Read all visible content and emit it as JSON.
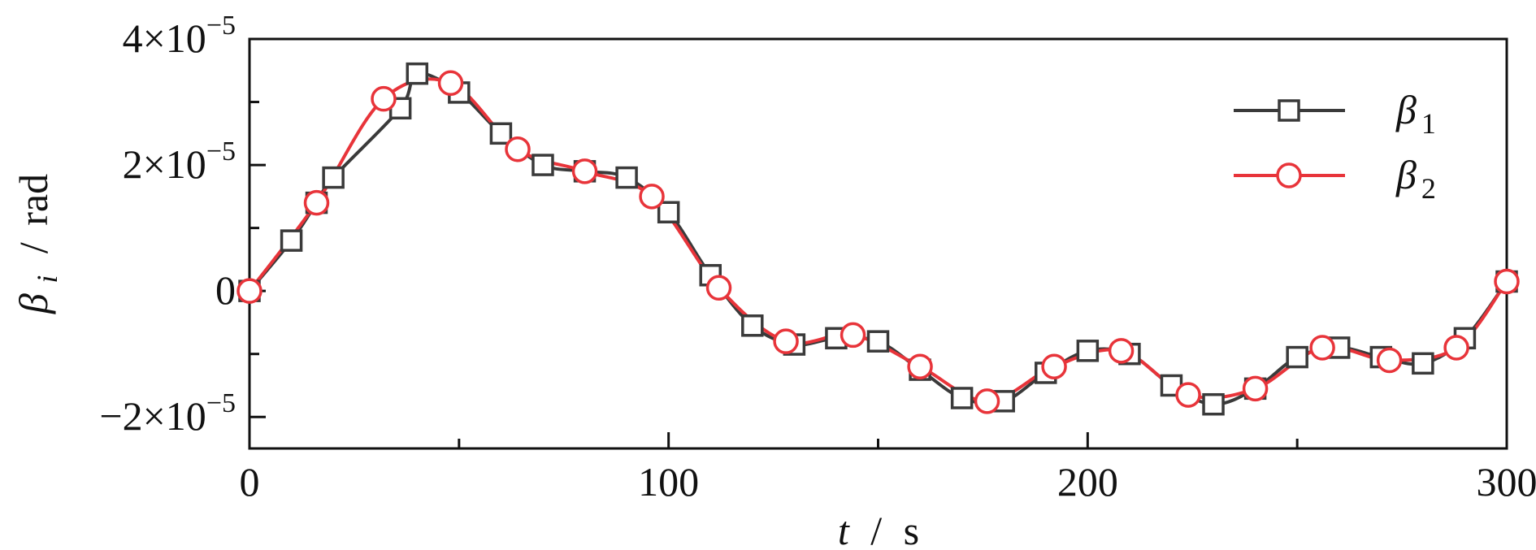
{
  "chart_data": {
    "type": "line",
    "xlabel": {
      "var": "t",
      "unit": "s"
    },
    "ylabel": {
      "var": "β",
      "sub": "i",
      "unit": "rad"
    },
    "xlim": [
      0,
      300
    ],
    "ylim": [
      -2.5,
      4
    ],
    "x_ticks": [
      {
        "value": 0,
        "label": "0"
      },
      {
        "value": 100,
        "label": "100"
      },
      {
        "value": 200,
        "label": "200"
      },
      {
        "value": 300,
        "label": "300"
      }
    ],
    "x_minor_ticks": [
      50,
      150,
      250
    ],
    "y_ticks": [
      {
        "value": 4,
        "mant": "4",
        "exp": "−5"
      },
      {
        "value": 2,
        "mant": "2",
        "exp": "−5"
      },
      {
        "value": 0,
        "mant": "0",
        "exp": ""
      },
      {
        "value": -2,
        "mant": "−2",
        "exp": "−5"
      }
    ],
    "y_minor_ticks": [
      3,
      1,
      -1
    ],
    "y_unit_scale": "×10^-5",
    "legend_position": "top-right",
    "series": [
      {
        "name": "β",
        "sub": "1",
        "marker": "square",
        "color": "#3a3a3a",
        "x": [
          0,
          10,
          16,
          20,
          36,
          40,
          50,
          60,
          70,
          80,
          90,
          100,
          110,
          120,
          130,
          140,
          150,
          160,
          170,
          180,
          190,
          200,
          210,
          220,
          230,
          240,
          250,
          260,
          270,
          280,
          290,
          300
        ],
        "y": [
          0,
          0.8,
          1.4,
          1.8,
          2.9,
          3.45,
          3.15,
          2.5,
          2.0,
          1.9,
          1.8,
          1.25,
          0.25,
          -0.55,
          -0.85,
          -0.75,
          -0.8,
          -1.25,
          -1.7,
          -1.75,
          -1.3,
          -0.95,
          -1.0,
          -1.5,
          -1.8,
          -1.55,
          -1.05,
          -0.9,
          -1.05,
          -1.15,
          -0.75,
          0.15
        ]
      },
      {
        "name": "β",
        "sub": "2",
        "marker": "circle",
        "color": "#e8343a",
        "x": [
          0,
          16,
          32,
          48,
          64,
          80,
          96,
          112,
          128,
          144,
          160,
          176,
          192,
          208,
          224,
          240,
          256,
          272,
          288,
          300
        ],
        "y": [
          0,
          1.4,
          3.05,
          3.3,
          2.25,
          1.9,
          1.5,
          0.05,
          -0.8,
          -0.7,
          -1.2,
          -1.75,
          -1.2,
          -0.95,
          -1.65,
          -1.55,
          -0.9,
          -1.1,
          -0.9,
          0.15
        ]
      }
    ]
  }
}
